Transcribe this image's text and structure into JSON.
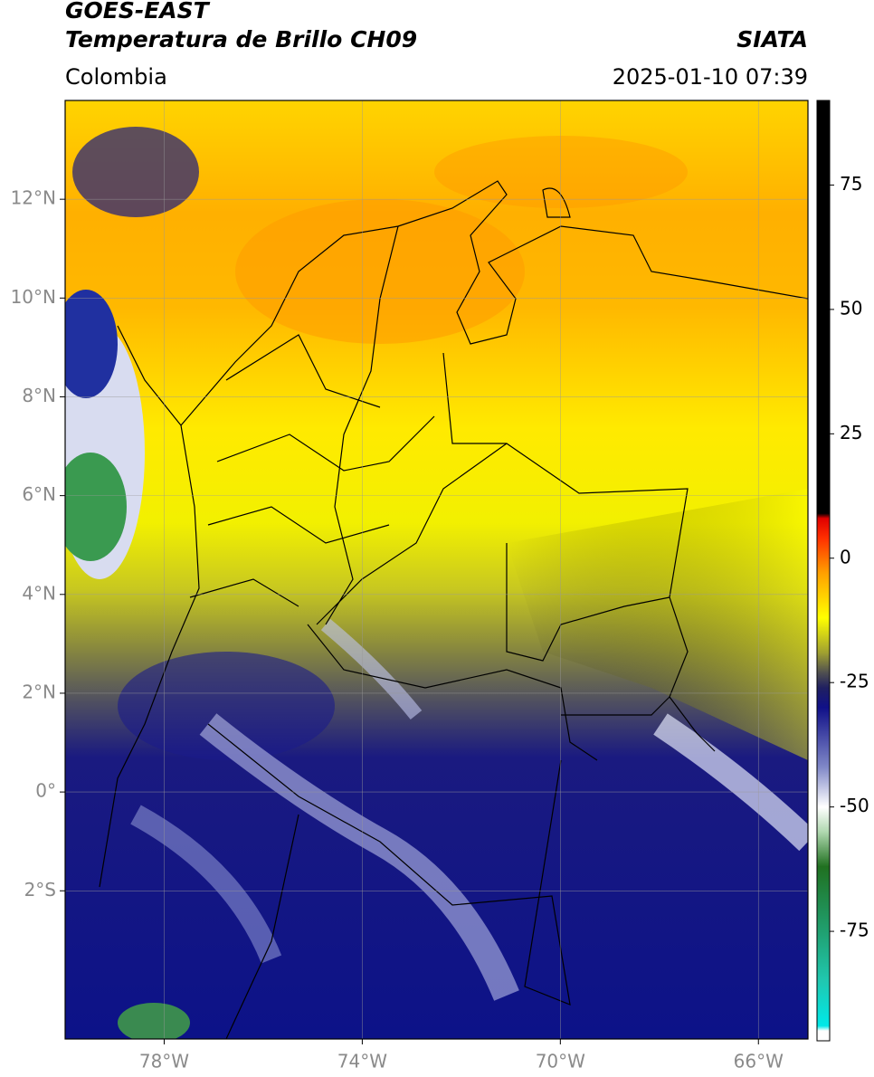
{
  "header": {
    "title": "GOES-EAST",
    "subtitle": "Temperatura de Brillo CH09",
    "source": "SIATA",
    "region": "Colombia",
    "datetime": "2025-01-10 07:39"
  },
  "map": {
    "xlim": [
      -80,
      -65
    ],
    "ylim": [
      -5,
      14
    ],
    "xticks": [
      {
        "value": -78,
        "label": "78°W"
      },
      {
        "value": -74,
        "label": "74°W"
      },
      {
        "value": -70,
        "label": "70°W"
      },
      {
        "value": -66,
        "label": "66°W"
      }
    ],
    "yticks": [
      {
        "value": 12,
        "label": "12°N"
      },
      {
        "value": 10,
        "label": "10°N"
      },
      {
        "value": 8,
        "label": "8°N"
      },
      {
        "value": 6,
        "label": "6°N"
      },
      {
        "value": 4,
        "label": "4°N"
      },
      {
        "value": 2,
        "label": "2°N"
      },
      {
        "value": 0,
        "label": "0°"
      },
      {
        "value": -2,
        "label": "2°S"
      }
    ],
    "grid": true
  },
  "colorbar": {
    "lim": [
      -97,
      92
    ],
    "ticks": [
      75,
      50,
      25,
      0,
      -25,
      -50,
      -75
    ],
    "colorscale": [
      [
        -97,
        "#ffffff"
      ],
      [
        -95,
        "#ffffff"
      ],
      [
        -94,
        "#00e8e8"
      ],
      [
        -85,
        "#20c8b0"
      ],
      [
        -75,
        "#20a070"
      ],
      [
        -62,
        "#207020"
      ],
      [
        -55,
        "#b0d8b0"
      ],
      [
        -50,
        "#ffffff"
      ],
      [
        -42,
        "#8088c8"
      ],
      [
        -30,
        "#101088"
      ],
      [
        -26,
        "#202060"
      ],
      [
        -23,
        "#505050"
      ],
      [
        -19,
        "#a0a030"
      ],
      [
        -12,
        "#ffff00"
      ],
      [
        -3,
        "#ffa000"
      ],
      [
        4,
        "#ff3000"
      ],
      [
        8,
        "#e00000"
      ],
      [
        9,
        "#000000"
      ],
      [
        92,
        "#000000"
      ]
    ]
  }
}
